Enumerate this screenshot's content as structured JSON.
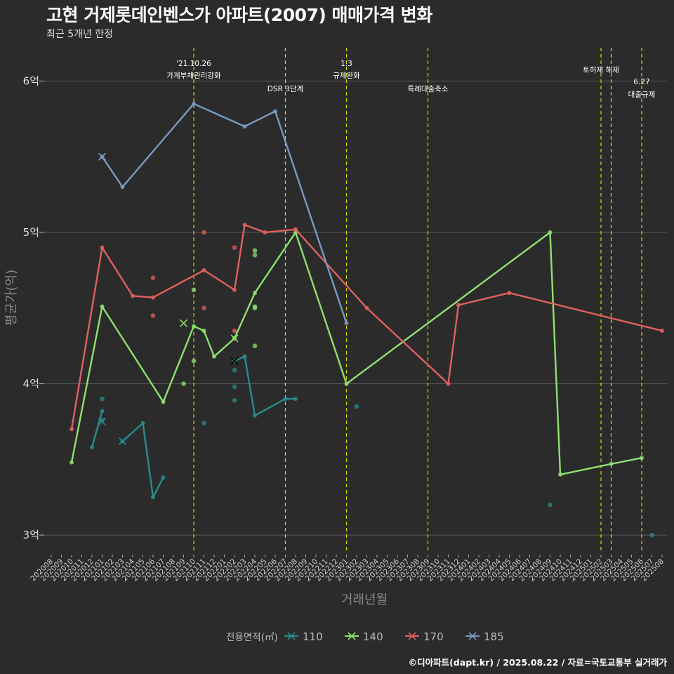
{
  "header": {
    "title": "고현 거제롯데인벤스가 아파트(2007) 매매가격 변화",
    "subtitle": "최근 5개년 한정"
  },
  "caption": "©디아파트(dapt.kr) / 2025.08.22 / 자료=국토교통부 실거래가",
  "colors": {
    "background": "#2b2b2b",
    "grid": "#5a5a5a",
    "event_line": "#d8d800",
    "s110": "#2a8b8b",
    "s140": "#8fe070",
    "s170": "#e06060",
    "s185": "#7a9ac0"
  },
  "chart_data": {
    "type": "line",
    "title": "고현 거제롯데인벤스가 아파트(2007) 매매가격 변화",
    "subtitle": "최근 5개년 한정",
    "xlabel": "거래년월",
    "ylabel": "평균가(억)",
    "ylim": [
      2.88,
      6.22
    ],
    "yticks": [
      3,
      4,
      5,
      6
    ],
    "ytick_labels": [
      "3억",
      "4억",
      "5억",
      "6억"
    ],
    "x_range": [
      "202008",
      "202508"
    ],
    "x_ticks": [
      "202008",
      "202009",
      "202010",
      "202011",
      "202012",
      "202101",
      "202102",
      "202103",
      "202104",
      "202105",
      "202106",
      "202107",
      "202108",
      "202109",
      "202110",
      "202111",
      "202112",
      "202201",
      "202202",
      "202203",
      "202204",
      "202205",
      "202206",
      "202207",
      "202208",
      "202209",
      "202210",
      "202211",
      "202212",
      "202301",
      "202302",
      "202303",
      "202304",
      "202305",
      "202306",
      "202307",
      "202308",
      "202309",
      "202310",
      "202311",
      "202312",
      "202401",
      "202402",
      "202403",
      "202404",
      "202405",
      "202406",
      "202407",
      "202408",
      "202409",
      "202410",
      "202411",
      "202412",
      "202501",
      "202502",
      "202503",
      "202504",
      "202505",
      "202506",
      "202507",
      "202508"
    ],
    "legend": {
      "title": "전용면적(㎡)",
      "entries": [
        "110",
        "140",
        "170",
        "185"
      ],
      "position": "bottom"
    },
    "events": [
      {
        "x": "202110",
        "label1": "'21.10.26",
        "label2": "가계부채관리강화",
        "row": 0
      },
      {
        "x": "202207",
        "label1": "",
        "label2": "DSR 3단계",
        "row": 1
      },
      {
        "x": "202301",
        "label1": "1.3",
        "label2": "규제완화",
        "row": 0
      },
      {
        "x": "202309",
        "label1": "",
        "label2": "특례대출축소",
        "row": 1
      },
      {
        "x": "202502",
        "label1": "",
        "label2": "토허제 해제",
        "row": 2
      },
      {
        "x": "202503",
        "label1": "",
        "label2": "",
        "row": 2
      },
      {
        "x": "202506",
        "label1": "6.27",
        "label2": "대출규제",
        "row": 3
      }
    ],
    "series": [
      {
        "name": "110",
        "color_key": "s110",
        "lines": [
          {
            "x": [
              "202012",
              "202101"
            ],
            "y": [
              3.58,
              3.82
            ]
          },
          {
            "x": [
              "202103",
              "202105",
              "202106",
              "202107"
            ],
            "y": [
              3.62,
              3.74,
              3.25,
              3.38
            ]
          },
          {
            "x": [
              "202202",
              "202203",
              "202204",
              "202207",
              "202208"
            ],
            "y": [
              4.15,
              4.18,
              3.79,
              3.9,
              3.9
            ]
          }
        ],
        "points": [
          {
            "x": "202101",
            "y": 3.9
          },
          {
            "x": "202101",
            "y": 3.76
          },
          {
            "x": "202111",
            "y": 3.74
          },
          {
            "x": "202202",
            "y": 4.09
          },
          {
            "x": "202202",
            "y": 3.98
          },
          {
            "x": "202202",
            "y": 3.89
          },
          {
            "x": "202302",
            "y": 3.85
          },
          {
            "x": "202409",
            "y": 3.2
          },
          {
            "x": "202507",
            "y": 3.0
          }
        ],
        "crosses": [
          {
            "x": "202101",
            "y": 3.75
          },
          {
            "x": "202103",
            "y": 3.62
          }
        ]
      },
      {
        "name": "140",
        "color_key": "s140",
        "lines": [
          {
            "x": [
              "202010",
              "202101",
              "202107",
              "202110",
              "202111",
              "202112",
              "202202",
              "202204",
              "202208",
              "202301",
              "202409",
              "202410",
              "202503",
              "202506"
            ],
            "y": [
              3.48,
              4.51,
              3.88,
              4.38,
              4.35,
              4.18,
              4.3,
              4.6,
              5.0,
              4.0,
              5.0,
              3.4,
              3.47,
              3.51
            ]
          }
        ],
        "points": [
          {
            "x": "202109",
            "y": 4.0
          },
          {
            "x": "202110",
            "y": 4.62
          },
          {
            "x": "202110",
            "y": 4.15
          },
          {
            "x": "202204",
            "y": 4.88
          },
          {
            "x": "202204",
            "y": 4.85
          },
          {
            "x": "202204",
            "y": 4.51
          },
          {
            "x": "202204",
            "y": 4.5
          },
          {
            "x": "202204",
            "y": 4.25
          }
        ],
        "crosses": [
          {
            "x": "202109",
            "y": 4.4
          },
          {
            "x": "202202",
            "y": 4.3
          }
        ]
      },
      {
        "name": "170",
        "color_key": "s170",
        "lines": [
          {
            "x": [
              "202010",
              "202101",
              "202104",
              "202106",
              "202111",
              "202202",
              "202203",
              "202205",
              "202208",
              "202303",
              "202311",
              "202312",
              "202405",
              "202508"
            ],
            "y": [
              3.7,
              4.9,
              4.58,
              4.57,
              4.75,
              4.62,
              5.05,
              5.0,
              5.02,
              4.5,
              4.0,
              4.52,
              4.6,
              4.35
            ]
          }
        ],
        "points": [
          {
            "x": "202106",
            "y": 4.7
          },
          {
            "x": "202106",
            "y": 4.45
          },
          {
            "x": "202111",
            "y": 5.0
          },
          {
            "x": "202111",
            "y": 4.5
          },
          {
            "x": "202202",
            "y": 4.9
          },
          {
            "x": "202202",
            "y": 4.35
          }
        ],
        "crosses": []
      },
      {
        "name": "185",
        "color_key": "s185",
        "lines": [
          {
            "x": [
              "202101",
              "202103",
              "202110",
              "202203",
              "202206",
              "202301"
            ],
            "y": [
              5.5,
              5.3,
              5.85,
              5.7,
              5.8,
              4.4
            ]
          }
        ],
        "points": [],
        "crosses": [
          {
            "x": "202101",
            "y": 5.5
          }
        ]
      }
    ],
    "extra_crosses": [
      {
        "x": "202202",
        "y": 4.15,
        "color": "#000000"
      }
    ]
  }
}
